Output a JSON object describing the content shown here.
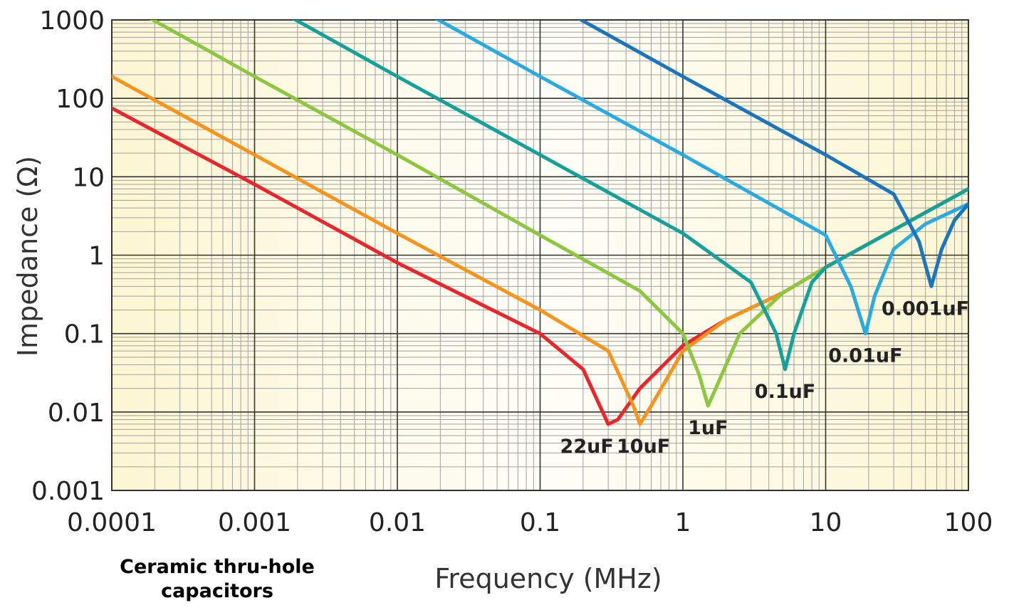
{
  "caption": "Ceramic thru-hole capacitors",
  "chart_data": {
    "type": "line",
    "xlabel": "Frequency (MHz)",
    "ylabel": "Impedance (Ω)",
    "x_scale": "log",
    "y_scale": "log",
    "xlim": [
      0.0001,
      100
    ],
    "ylim": [
      0.001,
      1000
    ],
    "grid": true,
    "x_ticks": [
      "0.0001",
      "0.001",
      "0.01",
      "0.1",
      "1",
      "10",
      "100"
    ],
    "y_ticks": [
      "1000",
      "100",
      "10",
      "1",
      "0.1",
      "0.01",
      "0.001"
    ],
    "series": [
      {
        "name": "22uF",
        "color": "#e8262b",
        "points": [
          [
            0.0001,
            75
          ],
          [
            0.001,
            8
          ],
          [
            0.01,
            0.8
          ],
          [
            0.1,
            0.1
          ],
          [
            0.2,
            0.035
          ],
          [
            0.3,
            0.007
          ],
          [
            0.35,
            0.008
          ],
          [
            0.5,
            0.02
          ],
          [
            1,
            0.07
          ],
          [
            2,
            0.15
          ],
          [
            5,
            0.33
          ],
          [
            10,
            0.7
          ],
          [
            20,
            1.4
          ],
          [
            50,
            3.5
          ],
          [
            100,
            7
          ]
        ]
      },
      {
        "name": "10uF",
        "color": "#f7941d",
        "points": [
          [
            0.0001,
            190
          ],
          [
            0.001,
            19
          ],
          [
            0.01,
            1.9
          ],
          [
            0.1,
            0.2
          ],
          [
            0.3,
            0.06
          ],
          [
            0.45,
            0.012
          ],
          [
            0.5,
            0.007
          ],
          [
            0.6,
            0.012
          ],
          [
            1,
            0.06
          ],
          [
            2,
            0.15
          ],
          [
            5,
            0.33
          ],
          [
            10,
            0.7
          ],
          [
            20,
            1.4
          ],
          [
            50,
            3.5
          ],
          [
            100,
            7
          ]
        ]
      },
      {
        "name": "1uF",
        "color": "#8dc63f",
        "points": [
          [
            0.00015,
            1300
          ],
          [
            0.001,
            190
          ],
          [
            0.01,
            19
          ],
          [
            0.1,
            1.8
          ],
          [
            0.5,
            0.35
          ],
          [
            1,
            0.1
          ],
          [
            1.3,
            0.03
          ],
          [
            1.5,
            0.012
          ],
          [
            1.7,
            0.02
          ],
          [
            2.5,
            0.1
          ],
          [
            5,
            0.33
          ],
          [
            10,
            0.7
          ],
          [
            20,
            1.4
          ],
          [
            50,
            3.5
          ],
          [
            100,
            7
          ]
        ]
      },
      {
        "name": "0.1uF",
        "color": "#14a19a",
        "points": [
          [
            0.0015,
            1300
          ],
          [
            0.01,
            190
          ],
          [
            0.1,
            19
          ],
          [
            1,
            1.9
          ],
          [
            3,
            0.45
          ],
          [
            4.5,
            0.1
          ],
          [
            5.2,
            0.035
          ],
          [
            6,
            0.1
          ],
          [
            8,
            0.45
          ],
          [
            10,
            0.7
          ],
          [
            20,
            1.4
          ],
          [
            50,
            3.5
          ],
          [
            100,
            7
          ]
        ]
      },
      {
        "name": "0.01uF",
        "color": "#29abe2",
        "points": [
          [
            0.015,
            1300
          ],
          [
            0.1,
            190
          ],
          [
            1,
            19
          ],
          [
            10,
            1.8
          ],
          [
            15,
            0.4
          ],
          [
            19,
            0.1
          ],
          [
            22,
            0.3
          ],
          [
            30,
            1.2
          ],
          [
            50,
            2.5
          ],
          [
            100,
            4.5
          ]
        ]
      },
      {
        "name": "0.001uF",
        "color": "#1b75bc",
        "points": [
          [
            0.15,
            1300
          ],
          [
            1,
            190
          ],
          [
            10,
            19
          ],
          [
            30,
            6
          ],
          [
            45,
            1.5
          ],
          [
            55,
            0.4
          ],
          [
            65,
            1.2
          ],
          [
            80,
            2.8
          ],
          [
            100,
            4.5
          ]
        ]
      }
    ]
  }
}
